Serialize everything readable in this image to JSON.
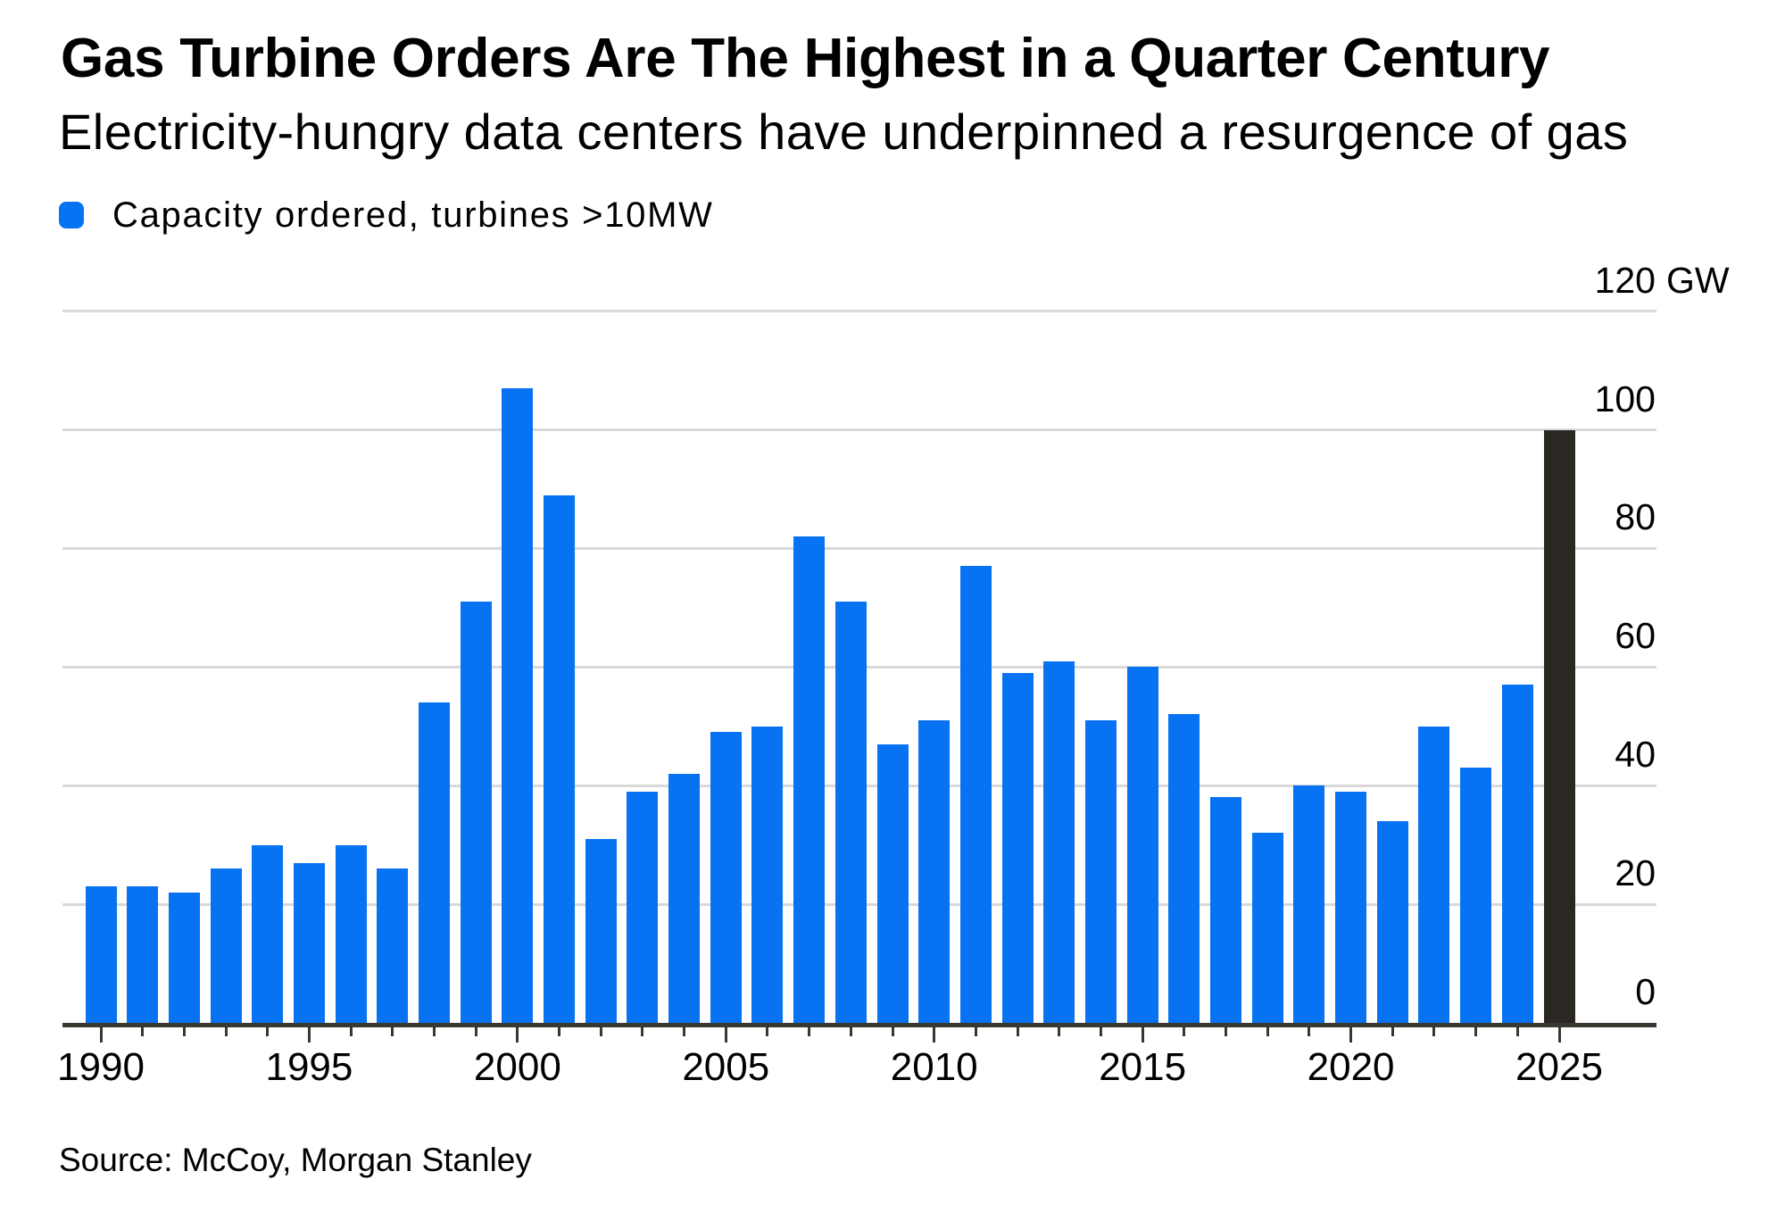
{
  "header": {
    "title": "Gas Turbine Orders Are The Highest in a Quarter Century",
    "subtitle": "Electricity-hungry data centers have underpinned a resurgence of gas"
  },
  "legend": {
    "label": "Capacity ordered, turbines >10MW",
    "marker_color": "#0873f2"
  },
  "source_note": "Source: McCoy, Morgan Stanley",
  "chart_data": {
    "type": "bar",
    "title": "Gas Turbine Orders Are The Highest in a Quarter Century",
    "subtitle": "Electricity-hungry data centers have underpinned a resurgence of gas",
    "legend_entries": [
      "Capacity ordered, turbines >10MW"
    ],
    "unit": "GW",
    "x": [
      1990,
      1991,
      1992,
      1993,
      1994,
      1995,
      1996,
      1997,
      1998,
      1999,
      2000,
      2001,
      2002,
      2003,
      2004,
      2005,
      2006,
      2007,
      2008,
      2009,
      2010,
      2011,
      2012,
      2013,
      2014,
      2015,
      2016,
      2017,
      2018,
      2019,
      2020,
      2021,
      2022,
      2023,
      2024,
      2025
    ],
    "values": [
      23,
      23,
      22,
      26,
      30,
      27,
      30,
      26,
      54,
      71,
      107,
      89,
      31,
      39,
      42,
      49,
      50,
      82,
      71,
      47,
      51,
      77,
      59,
      61,
      51,
      60,
      52,
      38,
      32,
      40,
      39,
      34,
      50,
      43,
      57,
      100
    ],
    "highlight_year": 2025,
    "ylim": [
      0,
      120
    ],
    "y_ticks": [
      0,
      20,
      40,
      60,
      80,
      100,
      120
    ],
    "y_axis_top_label": "120 GW",
    "x_tick_labels": [
      1990,
      1995,
      2000,
      2005,
      2010,
      2015,
      2020,
      2025
    ],
    "grid": true,
    "legend_position": "top-left",
    "colors": {
      "bar": "#0873f2",
      "highlight": "#2b2824",
      "grid": "#d9d9d9",
      "axis": "#3a3733",
      "text": "#000000"
    }
  }
}
